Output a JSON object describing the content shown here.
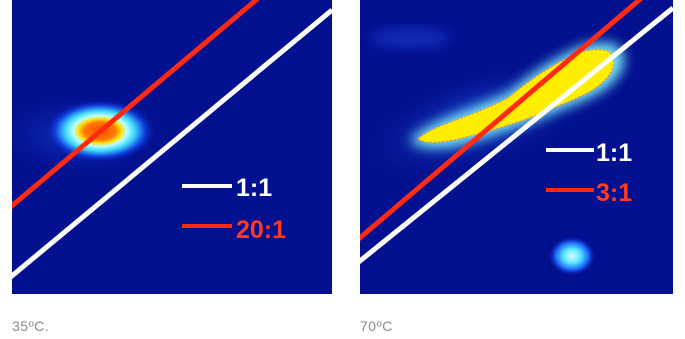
{
  "panels": [
    {
      "caption": "35ºC.",
      "legend": [
        {
          "label": "1:1",
          "color": "#ffffff"
        },
        {
          "label": "20:1",
          "color": "#ff3a1e"
        }
      ]
    },
    {
      "caption": "70ºC",
      "legend": [
        {
          "label": "1:1",
          "color": "#ffffff"
        },
        {
          "label": "3:1",
          "color": "#ff3a1e"
        }
      ]
    }
  ],
  "colors": {
    "background": "#03108f",
    "line_white": "#ffffff",
    "line_red": "#ff2a12",
    "hot": "#ff4a00",
    "yellow": "#ffee00",
    "cyan": "#7ff3ff"
  }
}
